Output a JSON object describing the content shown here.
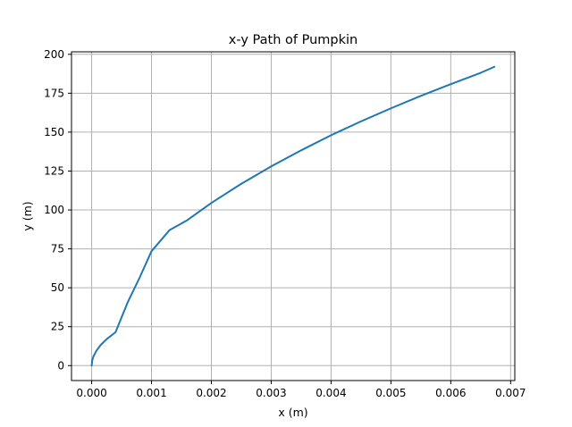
{
  "chart_data": {
    "type": "line",
    "title": "x-y Path of Pumpkin",
    "xlabel": "x (m)",
    "ylabel": "y (m)",
    "xlim": [
      -0.000337,
      0.00707
    ],
    "ylim": [
      -9.6,
      201.6
    ],
    "x_ticks": [
      0.0,
      0.001,
      0.002,
      0.003,
      0.004,
      0.005,
      0.006,
      0.007
    ],
    "x_tick_labels": [
      "0.000",
      "0.001",
      "0.002",
      "0.003",
      "0.004",
      "0.005",
      "0.006",
      "0.007"
    ],
    "y_ticks": [
      0,
      25,
      50,
      75,
      100,
      125,
      150,
      175,
      200
    ],
    "y_tick_labels": [
      "0",
      "25",
      "50",
      "75",
      "100",
      "125",
      "150",
      "175",
      "200"
    ],
    "grid": true,
    "series": [
      {
        "color": "#1f77b4",
        "x": [
          0.0,
          1e-05,
          3e-05,
          8e-05,
          0.00015,
          0.00025,
          0.0004,
          0.0006,
          0.0008,
          0.001,
          0.0013,
          0.0016,
          0.002,
          0.0025,
          0.003,
          0.0035,
          0.004,
          0.0045,
          0.005,
          0.0055,
          0.006,
          0.0065,
          0.00673
        ],
        "y": [
          0.0,
          3.4,
          5.9,
          9.6,
          13.2,
          17.0,
          21.5,
          40.5,
          56.4,
          73.5,
          87.0,
          93.5,
          104.5,
          116.8,
          128.0,
          138.3,
          148.0,
          156.9,
          165.3,
          173.3,
          180.8,
          188.1,
          192.0
        ]
      }
    ]
  }
}
